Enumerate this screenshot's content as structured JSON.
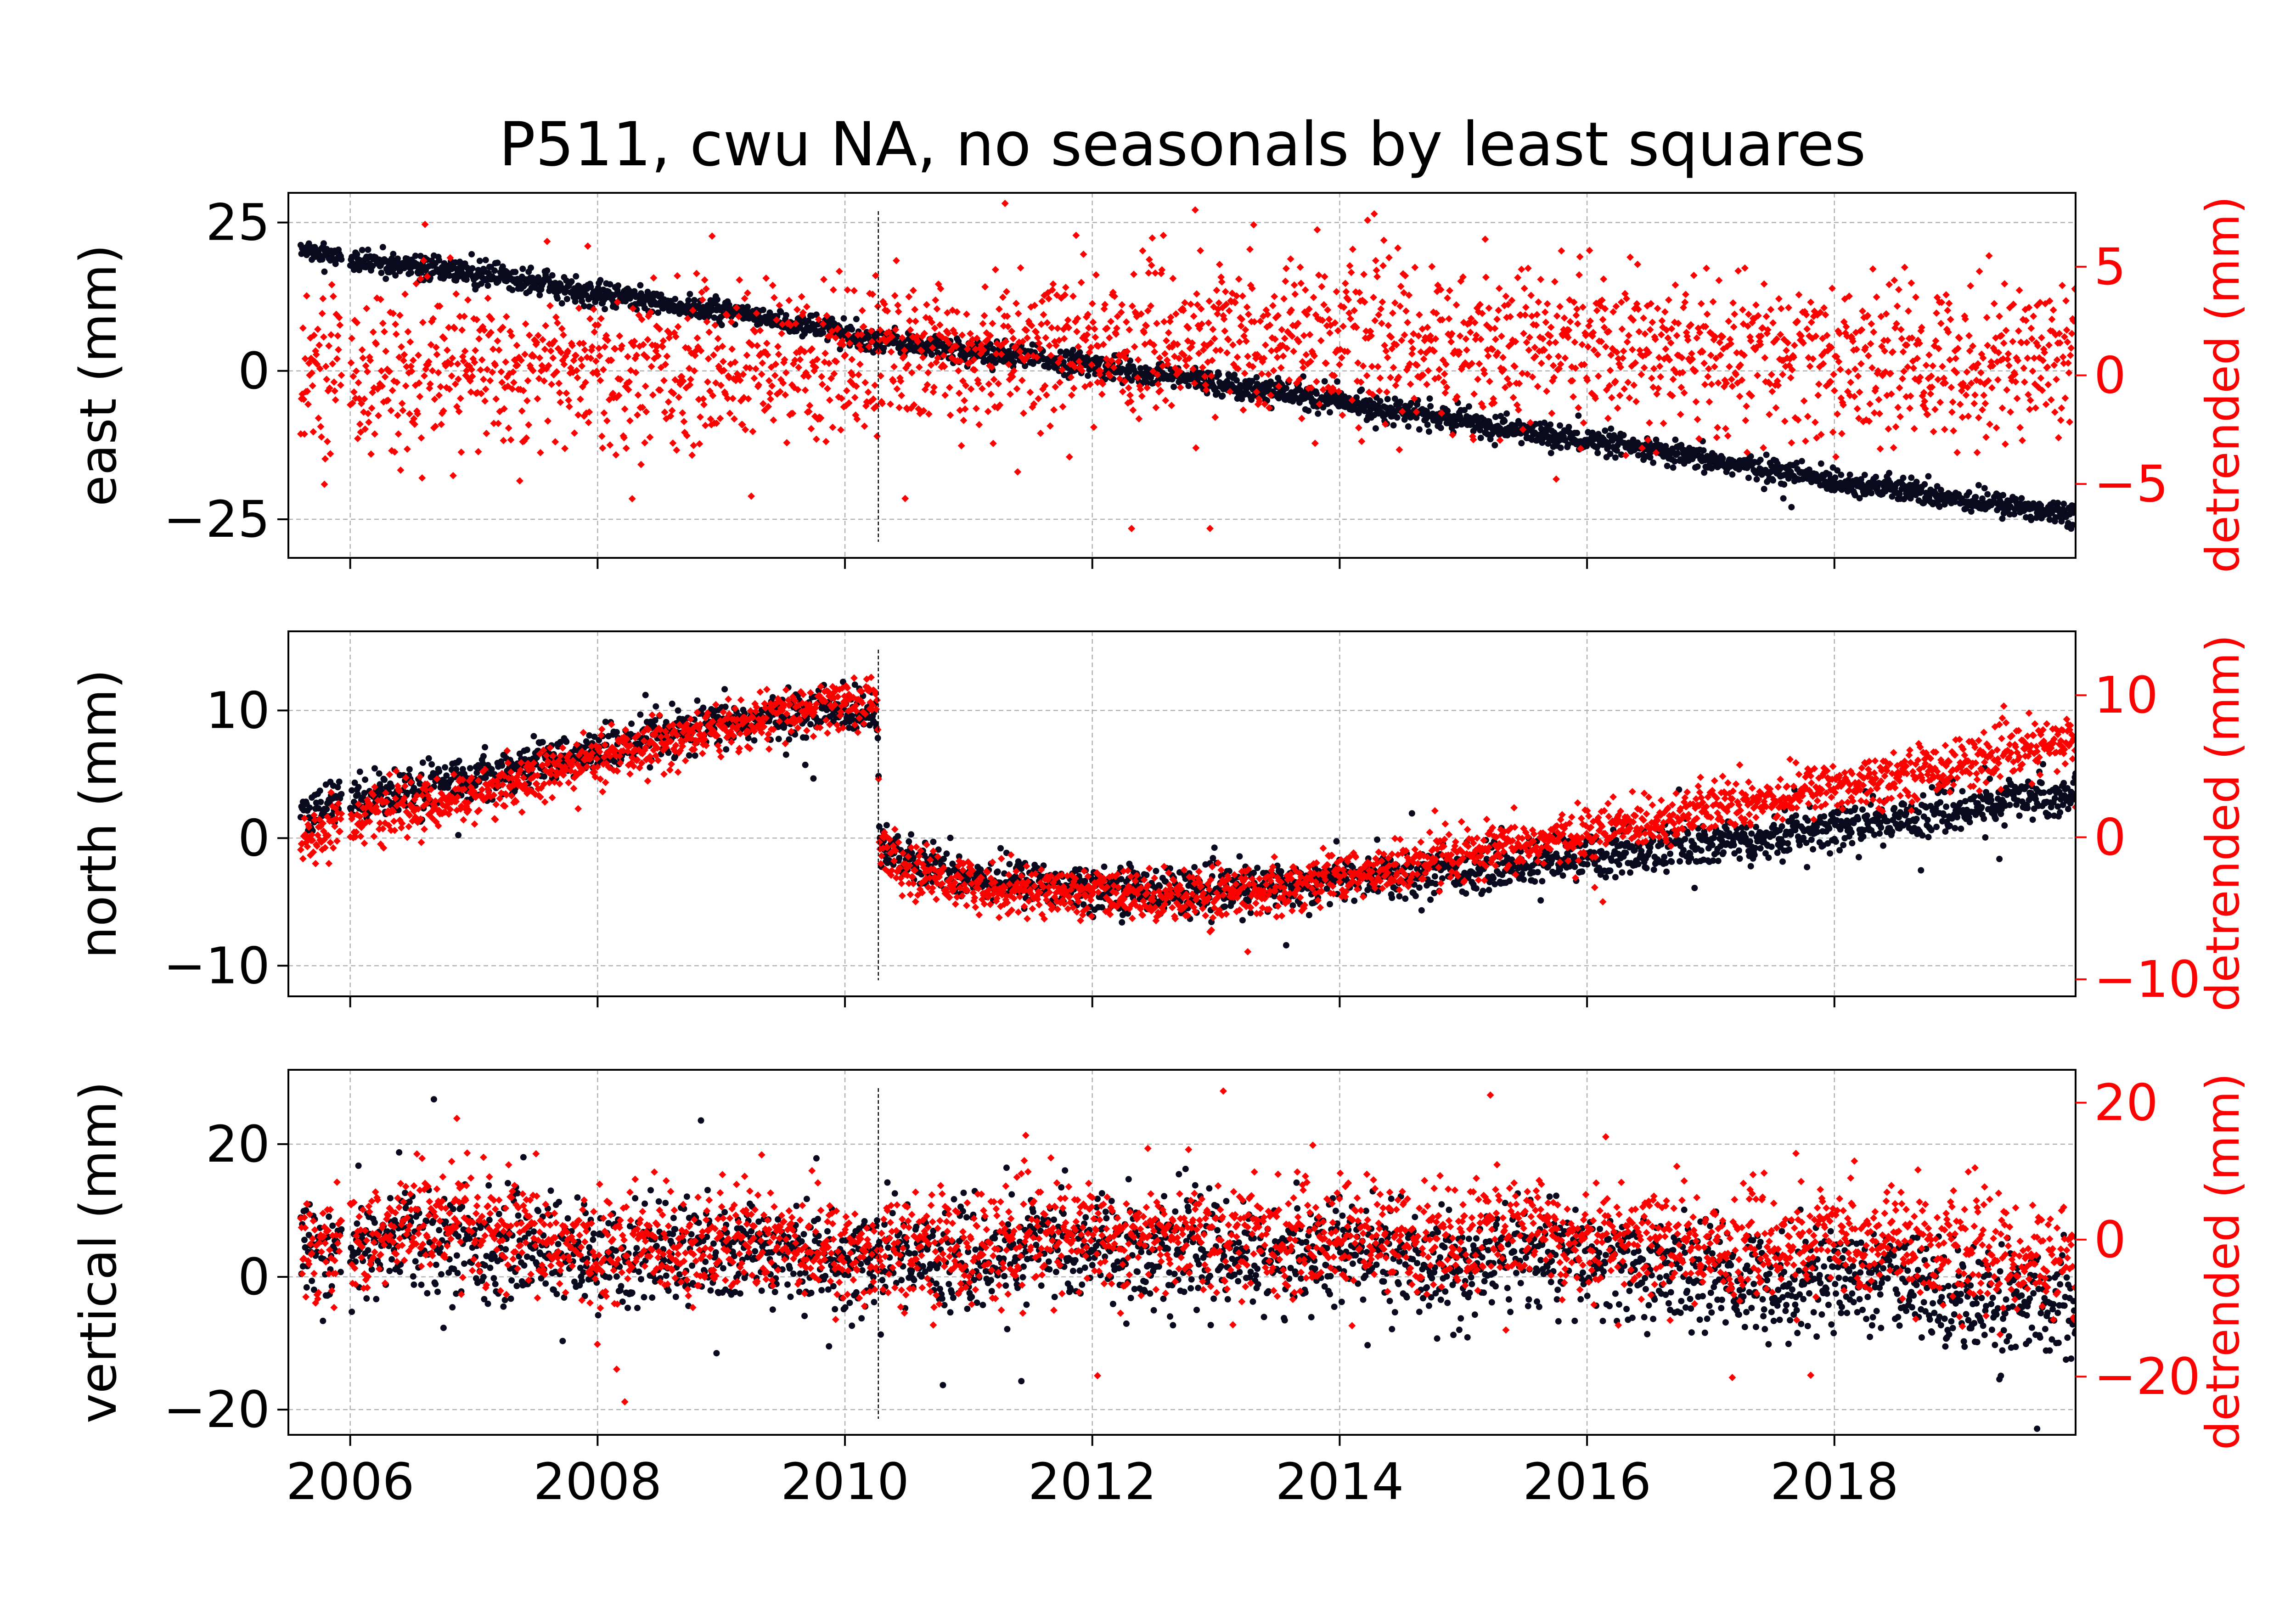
{
  "chart_data": {
    "type": "scatter",
    "title": "P511, cwu NA, no seasonals by least squares",
    "xlim": [
      2005.5,
      2019.95
    ],
    "xticks": [
      2006,
      2008,
      2010,
      2012,
      2014,
      2016,
      2018
    ],
    "xtick_labels": [
      "2006",
      "2008",
      "2010",
      "2012",
      "2014",
      "2016",
      "2018"
    ],
    "event_x": 2010.27,
    "colors": {
      "raw": "#0a0a1e",
      "detrended": "#ff0000",
      "axis_right": "#ff0000",
      "grid": "#b0b0b0"
    },
    "grid": true,
    "panels": [
      {
        "name": "east",
        "ylabel": "east (mm)",
        "ylabel_right": "detrended (mm)",
        "ylim": [
          -31.5,
          30
        ],
        "yticks": [
          25,
          0,
          -25
        ],
        "ytick_labels": [
          "25",
          "0",
          "−25"
        ],
        "ylim_right": [
          -8.4,
          8.4
        ],
        "yticks_right": [
          5,
          0,
          -5
        ],
        "ytick_labels_right": [
          "5",
          "0",
          "−5"
        ],
        "series": [
          {
            "role": "raw",
            "x": [
              2005.6,
              2005.8,
              2006.0,
              2006.3,
              2006.6,
              2007.0,
              2007.5,
              2008.0,
              2008.5,
              2009.0,
              2009.5,
              2010.0,
              2010.27,
              2010.8,
              2011.5,
              2012.0,
              2012.5,
              2013.0,
              2013.5,
              2014.0,
              2014.5,
              2015.0,
              2015.5,
              2016.0,
              2016.5,
              2017.0,
              2017.5,
              2018.0,
              2018.5,
              2019.0,
              2019.5,
              2019.95
            ],
            "y": [
              20,
              19.5,
              18.8,
              18.0,
              17.5,
              16.5,
              15.0,
              13.0,
              11.5,
              10.0,
              8.2,
              6.5,
              5.0,
              3.8,
              2.2,
              1.0,
              -0.5,
              -2.0,
              -3.5,
              -5.2,
              -6.8,
              -8.5,
              -10.2,
              -11.8,
              -13.5,
              -15.2,
              -16.8,
              -18.5,
              -20.0,
              -21.5,
              -23.0,
              -24.0
            ],
            "noise": 1.0
          },
          {
            "role": "detrended",
            "x": [
              2005.6,
              2006.0,
              2006.5,
              2007.0,
              2007.5,
              2008.0,
              2008.5,
              2009.0,
              2009.5,
              2010.0,
              2010.5,
              2011.0,
              2011.5,
              2012.0,
              2012.5,
              2013.0,
              2013.5,
              2014.0,
              2014.5,
              2015.0,
              2015.5,
              2016.0,
              2016.5,
              2017.0,
              2017.5,
              2018.0,
              2018.5,
              2019.0,
              2019.5,
              2019.95
            ],
            "y": [
              0.5,
              0.3,
              0.0,
              0.3,
              0.2,
              0.3,
              0.2,
              0.5,
              0.4,
              0.6,
              0.9,
              1.1,
              1.2,
              1.5,
              1.6,
              1.7,
              1.8,
              1.8,
              1.6,
              1.4,
              1.3,
              1.2,
              1.1,
              0.9,
              0.7,
              0.6,
              0.5,
              0.6,
              0.8,
              1.0
            ],
            "noise": 1.8
          }
        ]
      },
      {
        "name": "north",
        "ylabel": "north (mm)",
        "ylabel_right": "detrended (mm)",
        "ylim": [
          -12.4,
          16.2
        ],
        "yticks": [
          10,
          0,
          -10
        ],
        "ytick_labels": [
          "10",
          "0",
          "−10"
        ],
        "ylim_right": [
          -11.2,
          14.5
        ],
        "yticks_right": [
          10,
          0,
          -10
        ],
        "ytick_labels_right": [
          "10",
          "0",
          "−10"
        ],
        "series": [
          {
            "role": "raw",
            "x": [
              2005.6,
              2005.9,
              2006.0,
              2006.5,
              2007.0,
              2007.5,
              2008.0,
              2008.5,
              2009.0,
              2009.5,
              2010.0,
              2010.26,
              2010.28,
              2010.5,
              2011.0,
              2011.5,
              2012.0,
              2012.5,
              2013.0,
              2013.5,
              2014.0,
              2014.5,
              2015.0,
              2015.5,
              2016.0,
              2016.5,
              2017.0,
              2017.5,
              2018.0,
              2018.5,
              2019.0,
              2019.5,
              2019.95
            ],
            "y": [
              1.5,
              3.0,
              3.2,
              3.8,
              4.8,
              5.8,
              6.8,
              7.8,
              8.8,
              9.5,
              10.0,
              10.2,
              0.0,
              -2.0,
              -3.0,
              -3.5,
              -3.8,
              -4.0,
              -4.2,
              -3.8,
              -3.2,
              -2.8,
              -2.5,
              -2.0,
              -1.5,
              -1.0,
              -0.5,
              0.2,
              0.8,
              1.5,
              2.2,
              3.0,
              3.5
            ],
            "noise": 0.9
          },
          {
            "role": "detrended",
            "x": [
              2005.6,
              2005.9,
              2006.0,
              2006.5,
              2007.0,
              2007.5,
              2008.0,
              2008.5,
              2009.0,
              2009.5,
              2010.0,
              2010.26,
              2010.28,
              2010.5,
              2011.0,
              2011.5,
              2012.0,
              2012.5,
              2013.0,
              2013.5,
              2014.0,
              2014.5,
              2015.0,
              2015.5,
              2016.0,
              2016.5,
              2017.0,
              2017.5,
              2018.0,
              2018.5,
              2019.0,
              2019.5,
              2019.95
            ],
            "y": [
              -0.6,
              1.0,
              1.2,
              2.0,
              3.0,
              4.2,
              5.4,
              6.6,
              7.6,
              8.6,
              9.4,
              9.8,
              -0.5,
              -2.5,
              -3.3,
              -3.8,
              -4.0,
              -4.1,
              -4.0,
              -3.5,
              -2.8,
              -2.2,
              -1.4,
              -0.6,
              0.3,
              1.2,
              2.0,
              2.8,
              3.6,
              4.4,
              5.2,
              6.0,
              6.8
            ],
            "noise": 0.9
          }
        ]
      },
      {
        "name": "vertical",
        "ylabel": "vertical (mm)",
        "ylabel_right": "detrended (mm)",
        "ylim": [
          -23.8,
          31.2
        ],
        "yticks": [
          20,
          0,
          -20
        ],
        "ytick_labels": [
          "20",
          "0",
          "−20"
        ],
        "ylim_right": [
          -28.5,
          24.8
        ],
        "yticks_right": [
          20,
          0,
          -20
        ],
        "ytick_labels_right": [
          "20",
          "0",
          "−20"
        ],
        "series": [
          {
            "role": "raw",
            "x": [
              2005.6,
              2006.0,
              2006.5,
              2007.0,
              2007.5,
              2008.0,
              2008.5,
              2009.0,
              2009.5,
              2010.0,
              2010.5,
              2011.0,
              2011.5,
              2012.0,
              2012.5,
              2013.0,
              2013.5,
              2014.0,
              2014.5,
              2015.0,
              2015.5,
              2016.0,
              2016.5,
              2017.0,
              2017.5,
              2018.0,
              2018.5,
              2019.0,
              2019.5,
              2019.95
            ],
            "y": [
              6,
              3,
              7,
              4,
              5,
              2,
              4,
              3,
              5,
              1,
              4,
              2,
              4,
              5,
              3,
              4,
              3,
              4,
              2,
              1,
              4,
              2,
              1,
              0,
              -1,
              0,
              -1,
              -3,
              -4,
              -3
            ],
            "noise": 4.0
          },
          {
            "role": "detrended",
            "x": [
              2005.6,
              2006.0,
              2006.5,
              2007.0,
              2007.5,
              2008.0,
              2008.5,
              2009.0,
              2009.5,
              2010.0,
              2010.5,
              2011.0,
              2011.5,
              2012.0,
              2012.5,
              2013.0,
              2013.5,
              2014.0,
              2014.5,
              2015.0,
              2015.5,
              2016.0,
              2016.5,
              2017.0,
              2017.5,
              2018.0,
              2018.5,
              2019.0,
              2019.5,
              2019.95
            ],
            "y": [
              0,
              -2,
              3,
              1,
              0,
              -2,
              0,
              -1,
              1,
              -3,
              0,
              -1,
              0,
              1,
              0,
              1,
              0,
              1,
              0,
              0,
              2,
              0,
              0,
              -1,
              -1,
              0,
              0,
              -2,
              -3,
              -2
            ],
            "noise": 4.0
          }
        ]
      }
    ]
  }
}
